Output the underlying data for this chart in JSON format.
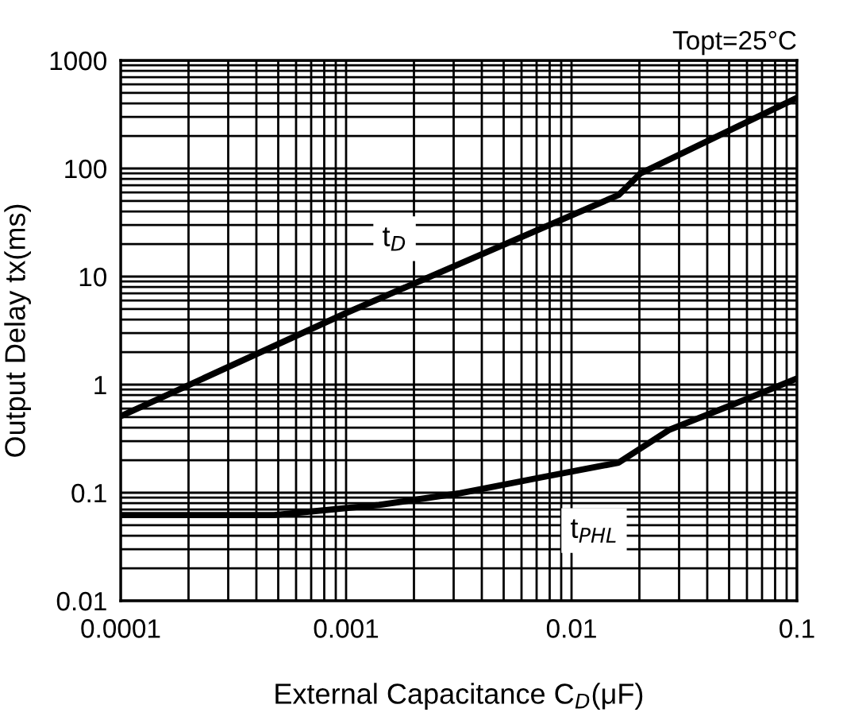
{
  "chart_data": {
    "type": "line",
    "xlabel": "External Capacitance C$_{D}$(μF)",
    "ylabel": "Output Delay tx(ms)",
    "annotations": [
      "Topt=25°C"
    ],
    "log": "xy",
    "grid": true,
    "legend": false,
    "marker": "none",
    "line_style": "solid",
    "xlim": [
      0.0001,
      0.1
    ],
    "xticks": [
      {
        "value": 0.0001,
        "label": "0.0001"
      },
      {
        "value": 0.001,
        "label": "0.001"
      },
      {
        "value": 0.01,
        "label": "0.01"
      },
      {
        "value": 0.1,
        "label": "0.1"
      }
    ],
    "ylim": [
      0.01,
      1000
    ],
    "yticks": [
      {
        "value": 0.01,
        "label": "0.01"
      },
      {
        "value": 0.1,
        "label": "0.1"
      },
      {
        "value": 1,
        "label": "1"
      },
      {
        "value": 10,
        "label": "10"
      },
      {
        "value": 100,
        "label": "100"
      },
      {
        "value": 1000,
        "label": "1000"
      }
    ],
    "series": [
      {
        "name": "t$_{D}$",
        "color": "#000000",
        "x": [
          0.0001,
          0.001,
          0.0162,
          0.0202,
          0.1
        ],
        "values": [
          0.51,
          4.6,
          57,
          90,
          450
        ]
      },
      {
        "name": "t$_{PHL}$",
        "color": "#000000",
        "x": [
          0.0001,
          0.00048,
          0.0014,
          0.0032,
          0.0074,
          0.0162,
          0.027,
          0.0524,
          0.1
        ],
        "values": [
          0.062,
          0.062,
          0.077,
          0.099,
          0.139,
          0.19,
          0.38,
          0.66,
          1.14
        ]
      }
    ]
  }
}
